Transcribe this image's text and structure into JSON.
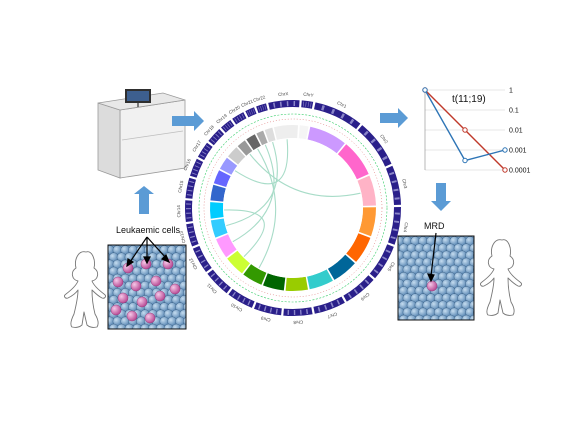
{
  "labels": {
    "leukaemic_cells": "Leukaemic cells",
    "mrd": "MRD",
    "translocation": "t(11;19)"
  },
  "chromosomes": [
    "Chr1",
    "Chr2",
    "Chr3",
    "Chr4",
    "Chr5",
    "Chr6",
    "Chr7",
    "Chr8",
    "Chr9",
    "Chr10",
    "Chr11",
    "Chr12",
    "Chr13",
    "Chr14",
    "Chr15",
    "Chr16",
    "Chr17",
    "Chr18",
    "Chr19",
    "Chr20",
    "Chr21",
    "Chr22",
    "ChrX",
    "ChrY"
  ],
  "colors": {
    "arrow": "#5b9bd5",
    "cells_bg": "#3d6a8e",
    "cell": "#7fa9cf",
    "leukaemic_cell": "#d86fb6",
    "outer_ring": "#2a1f8a",
    "series_red": "#c0392b",
    "series_blue": "#2e75b6"
  },
  "chart_data": {
    "type": "line",
    "ylabels": [
      "1",
      "0.1",
      "0.01",
      "0.001",
      "0.0001"
    ],
    "yscale": "log",
    "ylim": [
      0.0001,
      1
    ],
    "series": [
      {
        "color": "#c0392b",
        "values": [
          1,
          0.01,
          0.0001
        ]
      },
      {
        "color": "#2e75b6",
        "values": [
          1,
          0.0003,
          0.001
        ]
      }
    ]
  }
}
